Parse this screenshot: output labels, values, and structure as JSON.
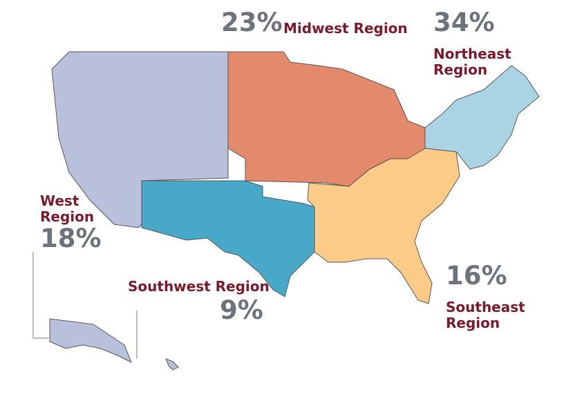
{
  "regions": [
    {
      "name_lines": [
        "Midwest Region"
      ],
      "share": "23%",
      "color": "#e3896c"
    },
    {
      "name_lines": [
        "Northeast",
        "Region"
      ],
      "share": "34%",
      "color": "#aad4e3"
    },
    {
      "name_lines": [
        "West",
        "Region"
      ],
      "share": "18%",
      "color": "#b8c0dc"
    },
    {
      "name_lines": [
        "Southwest Region"
      ],
      "share": "9%",
      "color": "#47a8c8"
    },
    {
      "name_lines": [
        "Southeast",
        "Region"
      ],
      "share": "16%",
      "color": "#fccb88"
    }
  ]
}
